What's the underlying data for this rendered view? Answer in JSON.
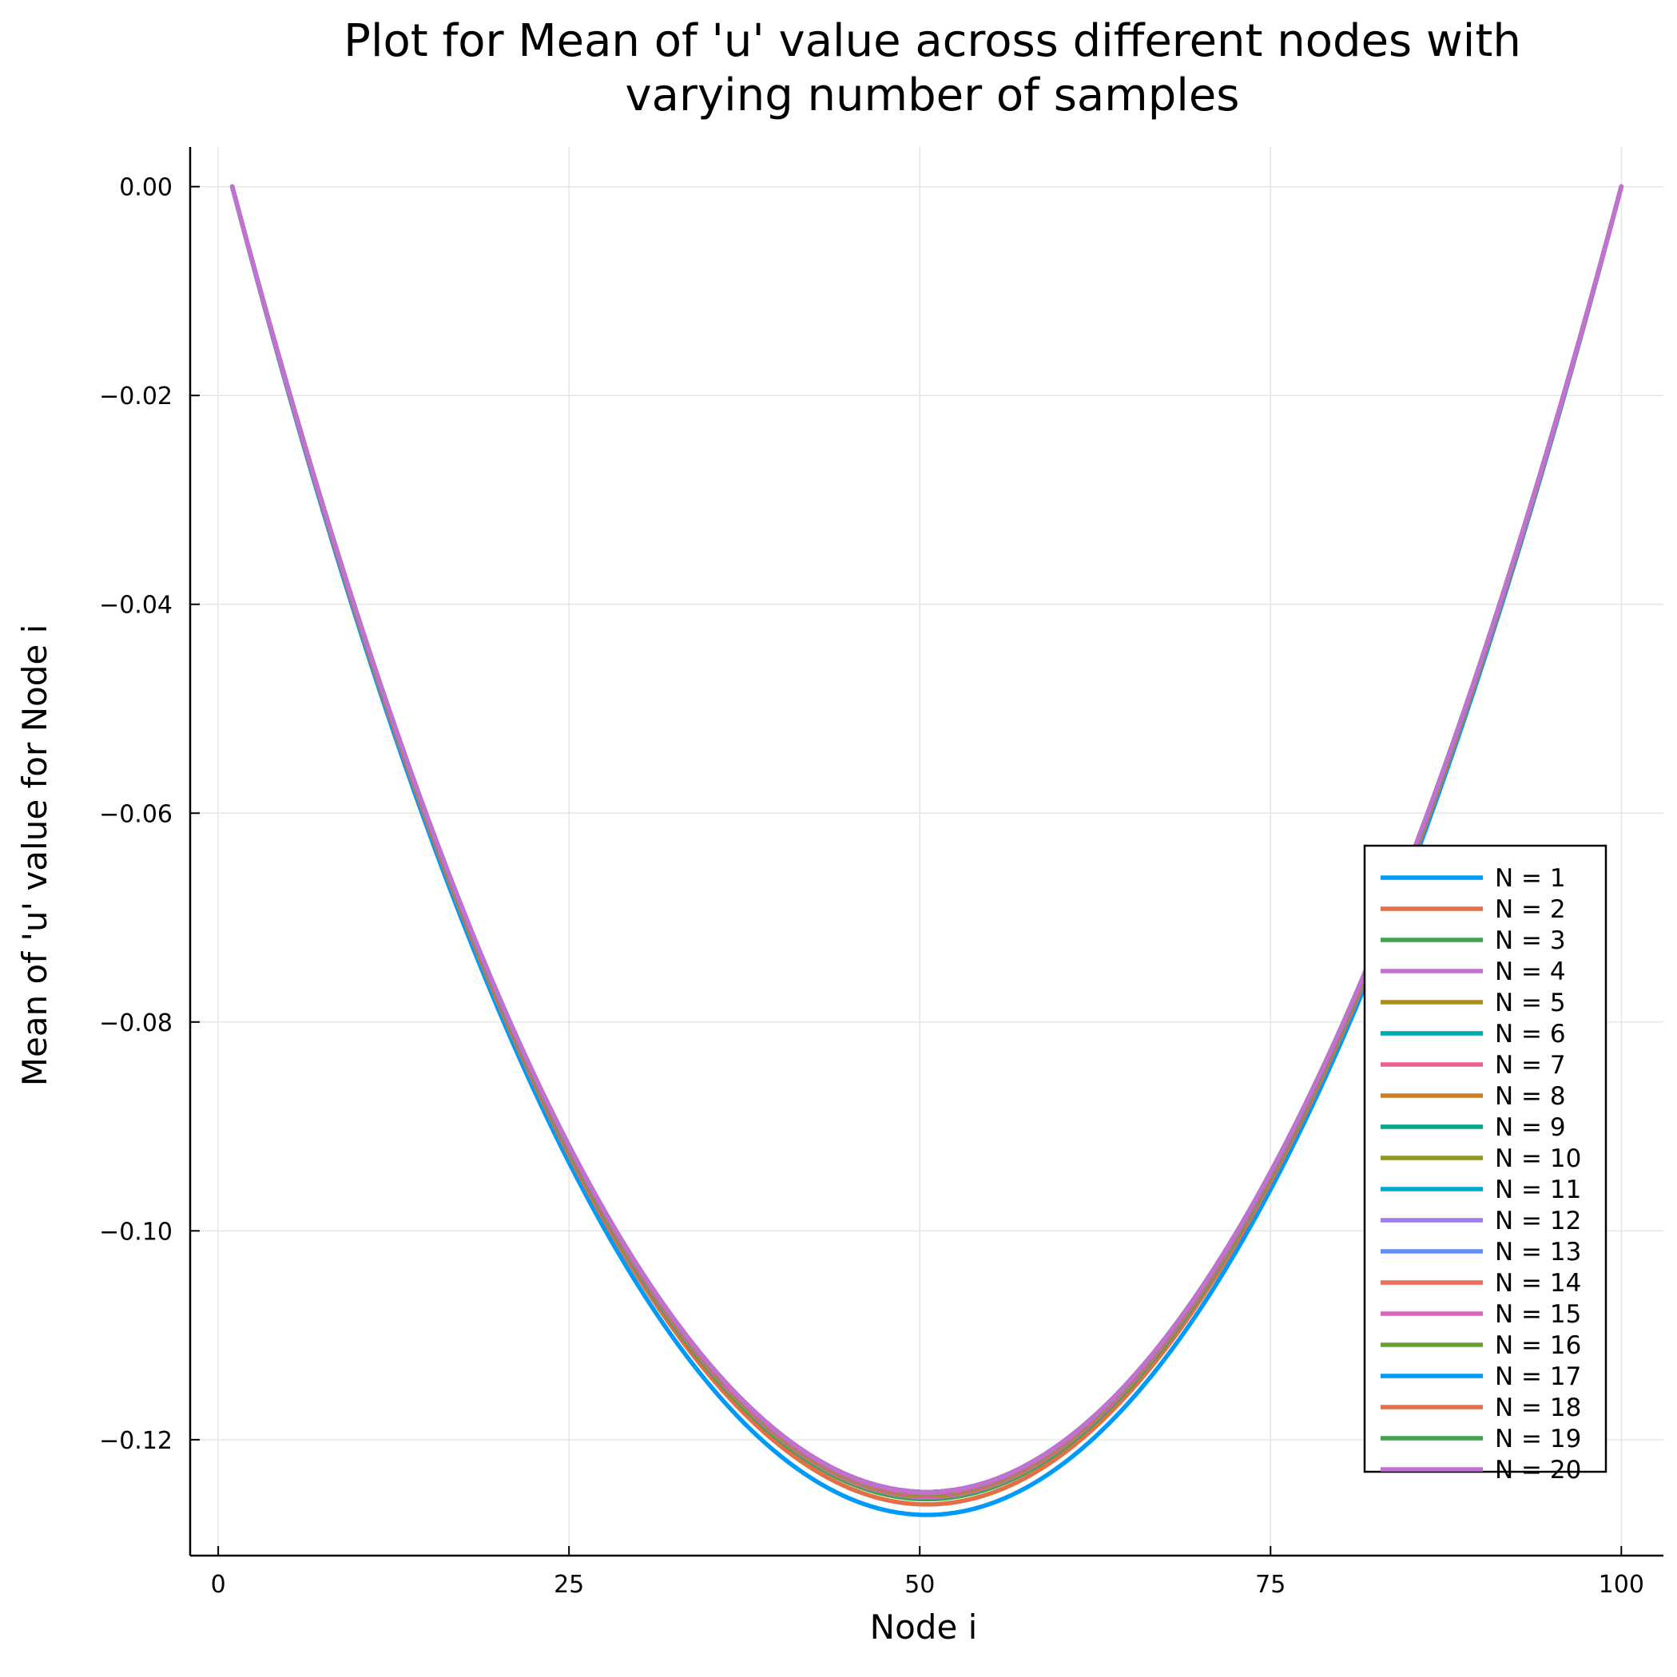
{
  "chart_data": {
    "type": "line",
    "title_lines": [
      "Plot for Mean of 'u' value across different nodes with",
      "varying number of samples"
    ],
    "xlabel": "Node i",
    "ylabel": "Mean of 'u' value for Node i",
    "xlim": [
      -2,
      103
    ],
    "ylim": [
      -0.1311,
      0.0038
    ],
    "x_ticks": [
      0,
      25,
      50,
      75,
      100
    ],
    "x_tick_labels": [
      "0",
      "25",
      "50",
      "75",
      "100"
    ],
    "y_ticks": [
      0.0,
      -0.02,
      -0.04,
      -0.06,
      -0.08,
      -0.1,
      -0.12
    ],
    "y_tick_labels": [
      "0.00",
      "−0.02",
      "−0.04",
      "−0.06",
      "−0.08",
      "−0.10",
      "−0.12"
    ],
    "grid": true,
    "legend_position": "bottom-right",
    "x_range": [
      1,
      100
    ],
    "curve_model": "quadratic, zero at both ends, minimum at center node",
    "series": [
      {
        "name": "N = 1",
        "color": "#009af9",
        "min_value": -0.1272
      },
      {
        "name": "N = 2",
        "color": "#e26f46",
        "min_value": -0.1262
      },
      {
        "name": "N = 3",
        "color": "#3da44d",
        "min_value": -0.1257
      },
      {
        "name": "N = 4",
        "color": "#c271d2",
        "min_value": -0.1255
      },
      {
        "name": "N = 5",
        "color": "#ac8d18",
        "min_value": -0.1254
      },
      {
        "name": "N = 6",
        "color": "#00a9ad",
        "min_value": -0.1253
      },
      {
        "name": "N = 7",
        "color": "#ed5d92",
        "min_value": -0.1253
      },
      {
        "name": "N = 8",
        "color": "#c68125",
        "min_value": -0.1252
      },
      {
        "name": "N = 9",
        "color": "#00a98d",
        "min_value": -0.1252
      },
      {
        "name": "N = 10",
        "color": "#8e971d",
        "min_value": -0.1252
      },
      {
        "name": "N = 11",
        "color": "#00a8cb",
        "min_value": -0.1251
      },
      {
        "name": "N = 12",
        "color": "#9b7fe9",
        "min_value": -0.1251
      },
      {
        "name": "N = 13",
        "color": "#618df6",
        "min_value": -0.1251
      },
      {
        "name": "N = 14",
        "color": "#f16c5c",
        "min_value": -0.1251
      },
      {
        "name": "N = 15",
        "color": "#dc63bb",
        "min_value": -0.1251
      },
      {
        "name": "N = 16",
        "color": "#6d9e33",
        "min_value": -0.125
      },
      {
        "name": "N = 17",
        "color": "#009af9",
        "min_value": -0.125
      },
      {
        "name": "N = 18",
        "color": "#e26f46",
        "min_value": -0.125
      },
      {
        "name": "N = 19",
        "color": "#3da44d",
        "min_value": -0.125
      },
      {
        "name": "N = 20",
        "color": "#c271d2",
        "min_value": -0.125
      }
    ]
  }
}
